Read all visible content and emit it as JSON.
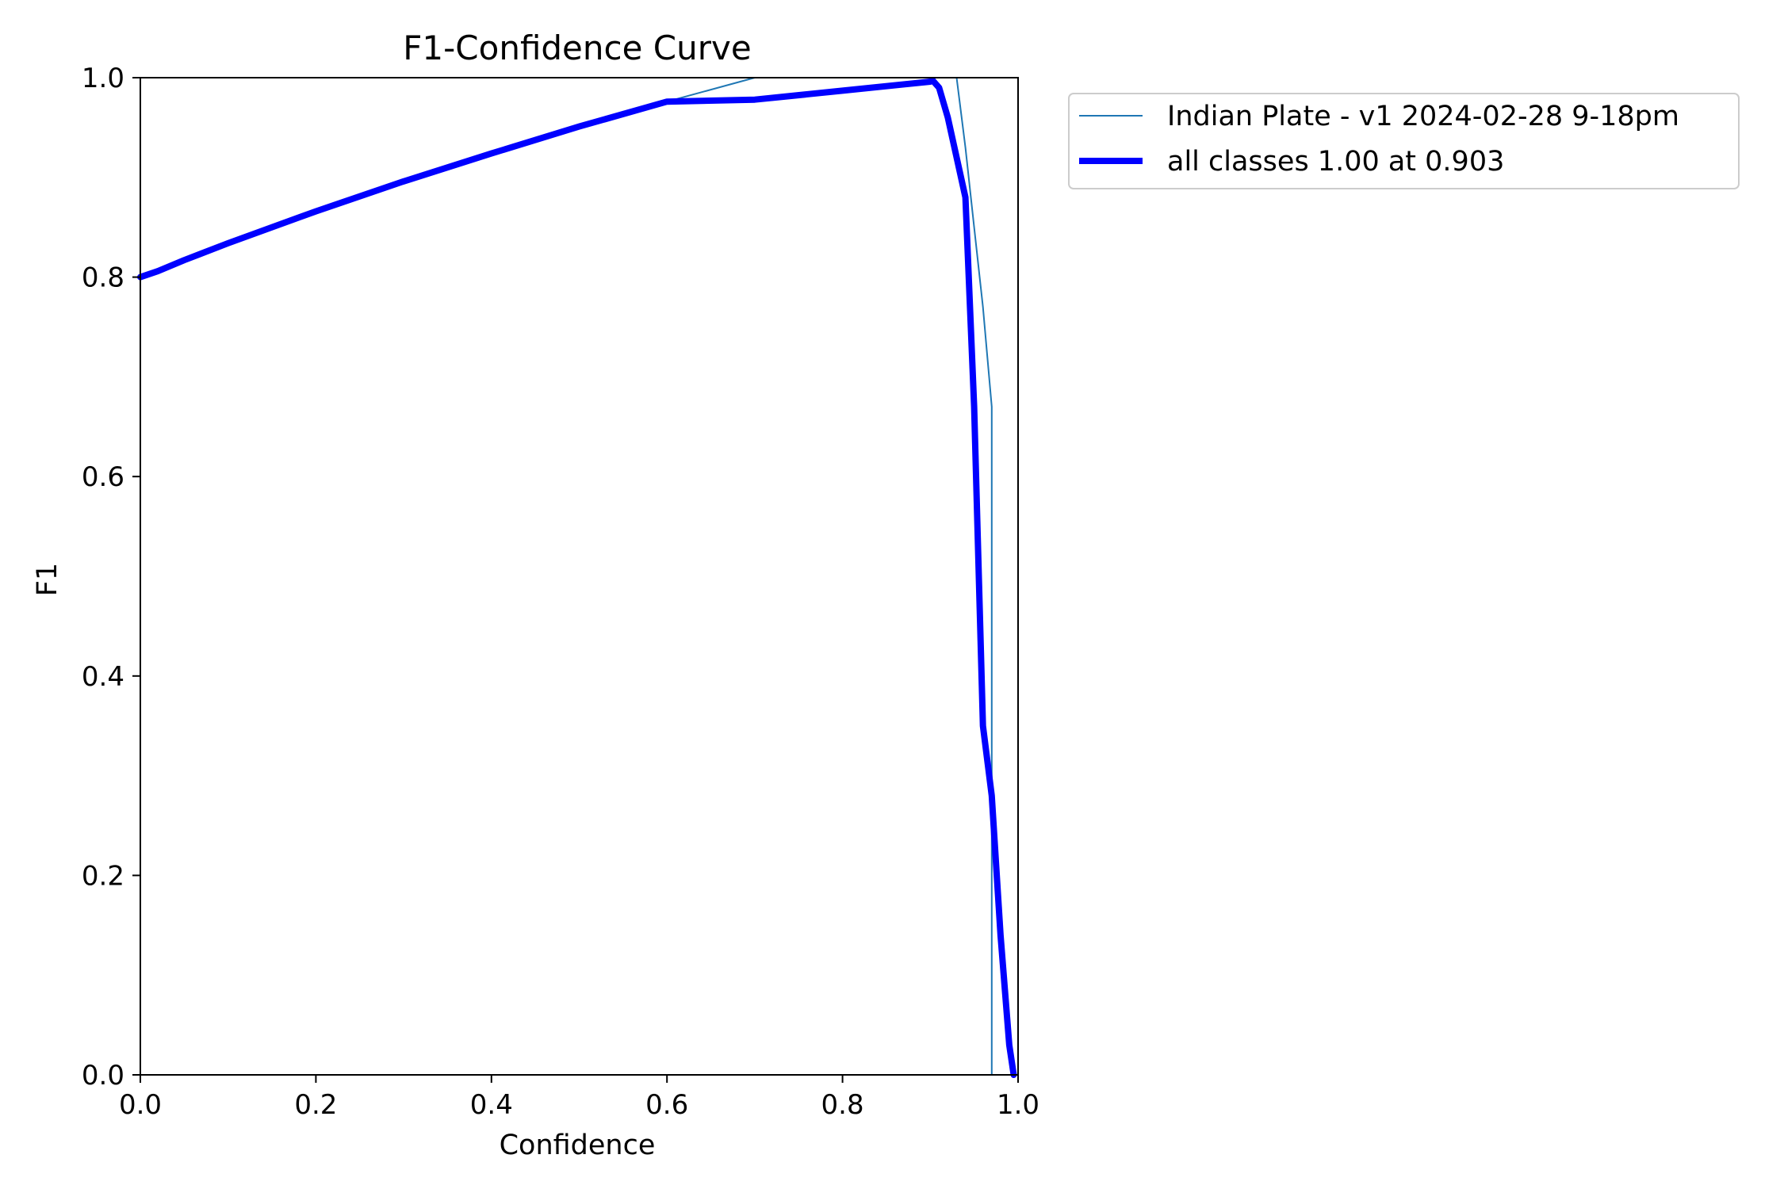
{
  "chart_data": {
    "type": "line",
    "title": "F1-Confidence Curve",
    "xlabel": "Confidence",
    "ylabel": "F1",
    "xlim": [
      0.0,
      1.0
    ],
    "ylim": [
      0.0,
      1.0
    ],
    "xticks": [
      "0.0",
      "0.2",
      "0.4",
      "0.6",
      "0.8",
      "1.0"
    ],
    "yticks": [
      "0.0",
      "0.2",
      "0.4",
      "0.6",
      "0.8",
      "1.0"
    ],
    "grid": false,
    "legend_position": "outside-upper-right",
    "series": [
      {
        "name": "Indian Plate - v1 2024-02-28 9-18pm",
        "color": "#1f77b4",
        "style": "thin",
        "x": [
          0.0,
          0.02,
          0.05,
          0.1,
          0.2,
          0.3,
          0.4,
          0.5,
          0.6,
          0.7,
          0.8,
          0.9,
          0.91,
          0.925,
          0.93,
          0.94,
          0.95,
          0.96,
          0.97,
          0.97,
          1.0
        ],
        "y": [
          0.8,
          0.806,
          0.817,
          0.834,
          0.866,
          0.896,
          0.924,
          0.951,
          0.976,
          1.0,
          1.0,
          1.0,
          1.0,
          1.0,
          1.0,
          0.93,
          0.85,
          0.77,
          0.67,
          0.0,
          0.0
        ]
      },
      {
        "name": "all classes 1.00 at 0.903",
        "color": "#0000ff",
        "style": "thick",
        "x": [
          0.0,
          0.02,
          0.05,
          0.1,
          0.2,
          0.3,
          0.4,
          0.5,
          0.6,
          0.7,
          0.8,
          0.9,
          0.903,
          0.91,
          0.92,
          0.93,
          0.94,
          0.95,
          0.96,
          0.97,
          0.98,
          0.99,
          0.995
        ],
        "y": [
          0.8,
          0.806,
          0.817,
          0.834,
          0.866,
          0.896,
          0.924,
          0.951,
          0.976,
          0.978,
          0.987,
          0.996,
          0.997,
          0.99,
          0.96,
          0.92,
          0.88,
          0.67,
          0.35,
          0.28,
          0.14,
          0.03,
          0.0
        ]
      }
    ]
  }
}
